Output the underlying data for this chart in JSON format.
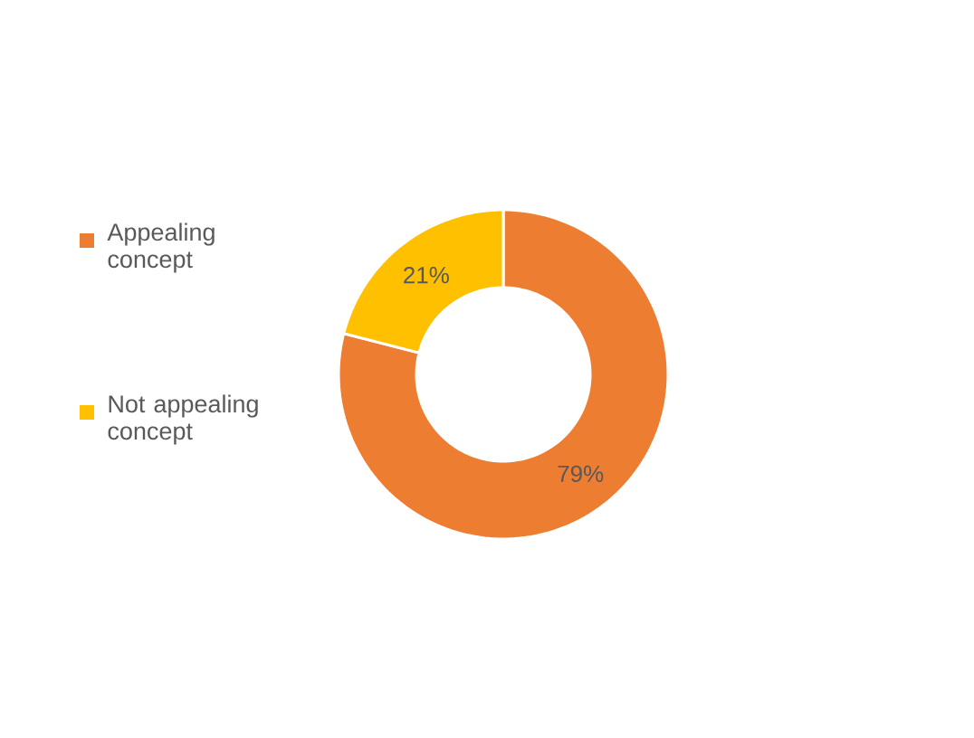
{
  "chart_data": {
    "type": "donut",
    "categories": [
      "Appealing concept",
      "Not appealing concept"
    ],
    "values": [
      79,
      21
    ],
    "colors": [
      "#ed7d31",
      "#ffc000"
    ],
    "value_labels": [
      "79%",
      "21%"
    ],
    "legend": "left"
  }
}
